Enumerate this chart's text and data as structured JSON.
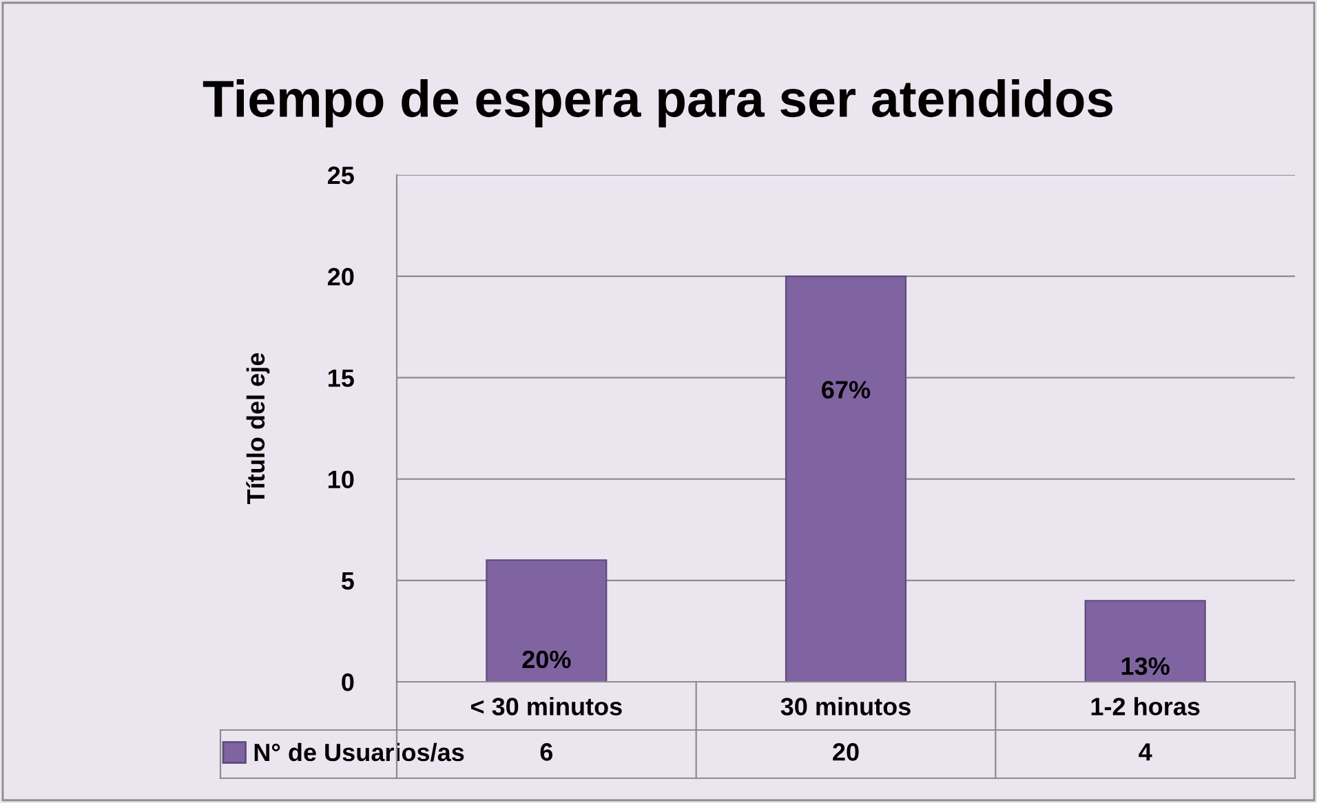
{
  "chart_data": {
    "type": "bar",
    "title": "Tiempo de espera para ser atendidos",
    "ylabel": "Título del eje",
    "categories": [
      "< 30 minutos",
      "30 minutos",
      "1-2 horas"
    ],
    "series": [
      {
        "name": "N° de Usuarios/as",
        "color": "#8064a2",
        "values": [
          6,
          20,
          4
        ],
        "value_labels": [
          "6",
          "20",
          "4"
        ]
      }
    ],
    "annotations": [
      "20%",
      "67%",
      "13%"
    ],
    "ylim": [
      0,
      25
    ],
    "yticks": [
      0,
      5,
      10,
      15,
      20,
      25
    ],
    "grid": "y",
    "legend": "bottom"
  }
}
